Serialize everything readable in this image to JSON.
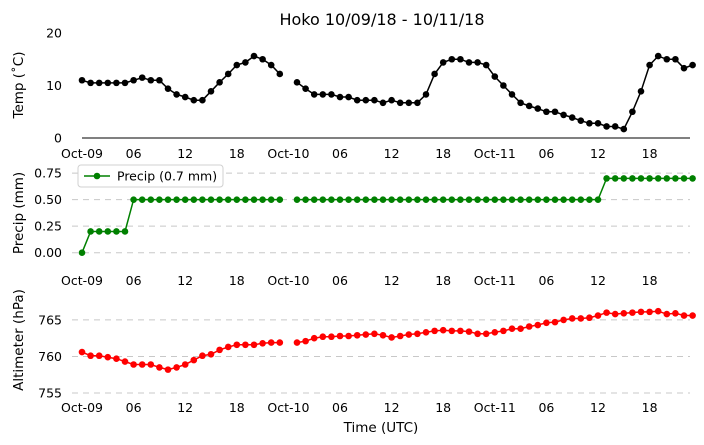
{
  "chart_data": [
    {
      "type": "line",
      "title": "Hoko 10/09/18 - 10/11/18",
      "ylabel": "Temp (˚C)",
      "xlabel": "",
      "ylim": [
        0,
        20
      ],
      "y_ticks": [
        0,
        10,
        20
      ],
      "x_ticks": [
        "Oct-09",
        "06",
        "12",
        "18",
        "Oct-10",
        "06",
        "12",
        "18",
        "Oct-11",
        "06",
        "12",
        "18"
      ],
      "grid": false,
      "color": "#000000",
      "series": [
        {
          "x_hours": [
            0,
            1,
            2,
            3,
            4,
            5,
            6,
            7,
            8,
            9,
            10,
            11,
            12,
            13,
            14,
            15,
            16,
            17,
            18,
            19,
            20,
            21,
            22,
            23,
            25,
            26,
            27,
            28,
            29,
            30,
            31,
            32,
            33,
            34,
            35,
            36,
            37,
            38,
            39,
            40,
            41,
            42,
            43,
            44,
            45,
            46,
            47,
            48,
            49,
            50,
            51,
            52,
            53,
            54,
            55,
            56,
            57,
            58,
            59,
            60,
            61,
            62,
            63,
            64,
            65,
            66,
            67,
            68,
            69,
            70,
            71
          ],
          "values": [
            11.0,
            10.5,
            10.5,
            10.5,
            10.5,
            10.5,
            11.0,
            11.5,
            11.0,
            11.0,
            9.4,
            8.3,
            7.8,
            7.2,
            7.2,
            8.9,
            10.6,
            12.2,
            13.9,
            14.4,
            15.6,
            15.0,
            13.9,
            12.2,
            10.6,
            9.4,
            8.3,
            8.3,
            8.3,
            7.8,
            7.8,
            7.2,
            7.2,
            7.2,
            6.7,
            7.2,
            6.7,
            6.7,
            6.7,
            8.3,
            12.2,
            14.4,
            15.0,
            15.0,
            14.4,
            14.4,
            13.9,
            11.7,
            10.0,
            8.3,
            6.7,
            6.1,
            5.6,
            5.0,
            5.0,
            4.4,
            3.9,
            3.3,
            2.8,
            2.8,
            2.2,
            2.2,
            1.7,
            5.0,
            8.9,
            13.9,
            15.6,
            15.0,
            15.0,
            13.3,
            13.9
          ]
        }
      ]
    },
    {
      "type": "line",
      "title": "",
      "ylabel": "Precip (mm)",
      "xlabel": "",
      "ylim": [
        -0.05,
        0.77
      ],
      "y_ticks": [
        0.0,
        0.25,
        0.5,
        0.75
      ],
      "y_tick_labels": [
        "0.00",
        "0.25",
        "0.50",
        "0.75"
      ],
      "x_ticks": [
        "Oct-09",
        "06",
        "12",
        "18",
        "Oct-10",
        "06",
        "12",
        "18",
        "Oct-11",
        "06",
        "12",
        "18"
      ],
      "grid": true,
      "legend": "upper-left",
      "color": "#008000",
      "series": [
        {
          "name": "Precip (0.7 mm)",
          "x_hours": [
            0,
            1,
            2,
            3,
            4,
            5,
            6,
            7,
            8,
            9,
            10,
            11,
            12,
            13,
            14,
            15,
            16,
            17,
            18,
            19,
            20,
            21,
            22,
            23,
            25,
            26,
            27,
            28,
            29,
            30,
            31,
            32,
            33,
            34,
            35,
            36,
            37,
            38,
            39,
            40,
            41,
            42,
            43,
            44,
            45,
            46,
            47,
            48,
            49,
            50,
            51,
            52,
            53,
            54,
            55,
            56,
            57,
            58,
            59,
            60,
            61,
            62,
            63,
            64,
            65,
            66,
            67,
            68,
            69,
            70,
            71
          ],
          "values": [
            0.0,
            0.2,
            0.2,
            0.2,
            0.2,
            0.2,
            0.5,
            0.5,
            0.5,
            0.5,
            0.5,
            0.5,
            0.5,
            0.5,
            0.5,
            0.5,
            0.5,
            0.5,
            0.5,
            0.5,
            0.5,
            0.5,
            0.5,
            0.5,
            0.5,
            0.5,
            0.5,
            0.5,
            0.5,
            0.5,
            0.5,
            0.5,
            0.5,
            0.5,
            0.5,
            0.5,
            0.5,
            0.5,
            0.5,
            0.5,
            0.5,
            0.5,
            0.5,
            0.5,
            0.5,
            0.5,
            0.5,
            0.5,
            0.5,
            0.5,
            0.5,
            0.5,
            0.5,
            0.5,
            0.5,
            0.5,
            0.5,
            0.5,
            0.5,
            0.5,
            0.7,
            0.7,
            0.7,
            0.7,
            0.7,
            0.7,
            0.7,
            0.7,
            0.7,
            0.7,
            0.7
          ]
        }
      ]
    },
    {
      "type": "line",
      "title": "",
      "ylabel": "Altimeter (hPa)",
      "xlabel": "Time (UTC)",
      "ylim": [
        755,
        768
      ],
      "y_ticks": [
        755,
        760,
        765
      ],
      "x_ticks": [
        "Oct-09",
        "06",
        "12",
        "18",
        "Oct-10",
        "06",
        "12",
        "18",
        "Oct-11",
        "06",
        "12",
        "18"
      ],
      "grid": true,
      "color": "#ff0000",
      "series": [
        {
          "x_hours": [
            0,
            1,
            2,
            3,
            4,
            5,
            6,
            7,
            8,
            9,
            10,
            11,
            12,
            13,
            14,
            15,
            16,
            17,
            18,
            19,
            20,
            21,
            22,
            23,
            25,
            26,
            27,
            28,
            29,
            30,
            31,
            32,
            33,
            34,
            35,
            36,
            37,
            38,
            39,
            40,
            41,
            42,
            43,
            44,
            45,
            46,
            47,
            48,
            49,
            50,
            51,
            52,
            53,
            54,
            55,
            56,
            57,
            58,
            59,
            60,
            61,
            62,
            63,
            64,
            65,
            66,
            67,
            68,
            69,
            70,
            71
          ],
          "values": [
            760.6,
            760.1,
            760.1,
            759.9,
            759.7,
            759.3,
            758.9,
            758.9,
            758.9,
            758.5,
            758.2,
            758.5,
            758.9,
            759.5,
            760.1,
            760.3,
            760.9,
            761.3,
            761.6,
            761.6,
            761.6,
            761.8,
            761.9,
            761.9,
            761.9,
            762.1,
            762.5,
            762.7,
            762.7,
            762.8,
            762.8,
            762.9,
            763.0,
            763.1,
            762.9,
            762.6,
            762.8,
            763.0,
            763.1,
            763.3,
            763.5,
            763.6,
            763.5,
            763.5,
            763.4,
            763.1,
            763.1,
            763.3,
            763.5,
            763.8,
            763.8,
            764.1,
            764.3,
            764.6,
            764.7,
            765.0,
            765.2,
            765.2,
            765.3,
            765.6,
            766.0,
            765.8,
            765.9,
            766.0,
            766.1,
            766.1,
            766.2,
            765.8,
            765.9,
            765.6,
            765.6
          ]
        }
      ]
    }
  ]
}
